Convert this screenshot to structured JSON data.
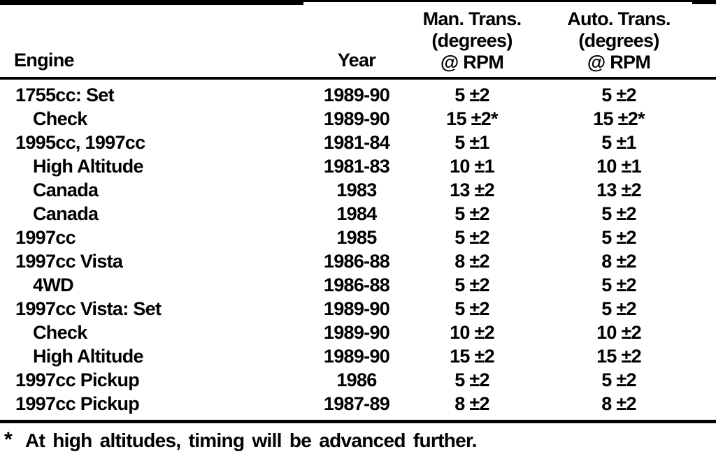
{
  "colors": {
    "ink": "#000000",
    "paper": "#ffffff"
  },
  "table": {
    "headers": {
      "engine": "Engine",
      "year": "Year",
      "man": {
        "line1": "Man. Trans.",
        "line2": "(degrees)",
        "line3": "@ RPM"
      },
      "auto": {
        "line1": "Auto. Trans.",
        "line2": "(degrees)",
        "line3": "@ RPM"
      }
    },
    "rows": [
      {
        "engine": "1755cc: Set",
        "indent": false,
        "year": "1989-90",
        "man": "5 ±2",
        "auto": "5 ±2"
      },
      {
        "engine": "Check",
        "indent": true,
        "year": "1989-90",
        "man": "15 ±2*",
        "auto": "15 ±2*"
      },
      {
        "engine": "1995cc, 1997cc",
        "indent": false,
        "year": "1981-84",
        "man": "5 ±1",
        "auto": "5 ±1"
      },
      {
        "engine": "High Altitude",
        "indent": true,
        "year": "1981-83",
        "man": "10 ±1",
        "auto": "10 ±1"
      },
      {
        "engine": "Canada",
        "indent": true,
        "year": "1983",
        "man": "13 ±2",
        "auto": "13 ±2"
      },
      {
        "engine": "Canada",
        "indent": true,
        "year": "1984",
        "man": "5 ±2",
        "auto": "5 ±2"
      },
      {
        "engine": "1997cc",
        "indent": false,
        "year": "1985",
        "man": "5 ±2",
        "auto": "5 ±2"
      },
      {
        "engine": "1997cc Vista",
        "indent": false,
        "year": "1986-88",
        "man": "8 ±2",
        "auto": "8 ±2"
      },
      {
        "engine": "4WD",
        "indent": true,
        "year": "1986-88",
        "man": "5 ±2",
        "auto": "5 ±2"
      },
      {
        "engine": "1997cc Vista: Set",
        "indent": false,
        "year": "1989-90",
        "man": "5 ±2",
        "auto": "5 ±2"
      },
      {
        "engine": "Check",
        "indent": true,
        "year": "1989-90",
        "man": "10 ±2",
        "auto": "10 ±2"
      },
      {
        "engine": "High Altitude",
        "indent": true,
        "year": "1989-90",
        "man": "15 ±2",
        "auto": "15 ±2"
      },
      {
        "engine": "1997cc Pickup",
        "indent": false,
        "year": "1986",
        "man": "5 ±2",
        "auto": "5 ±2"
      },
      {
        "engine": "1997cc Pickup",
        "indent": false,
        "year": "1987-89",
        "man": "8 ±2",
        "auto": "8 ±2"
      }
    ],
    "footnote": {
      "marker": "*",
      "text": "At high altitudes, timing will be advanced further."
    }
  }
}
